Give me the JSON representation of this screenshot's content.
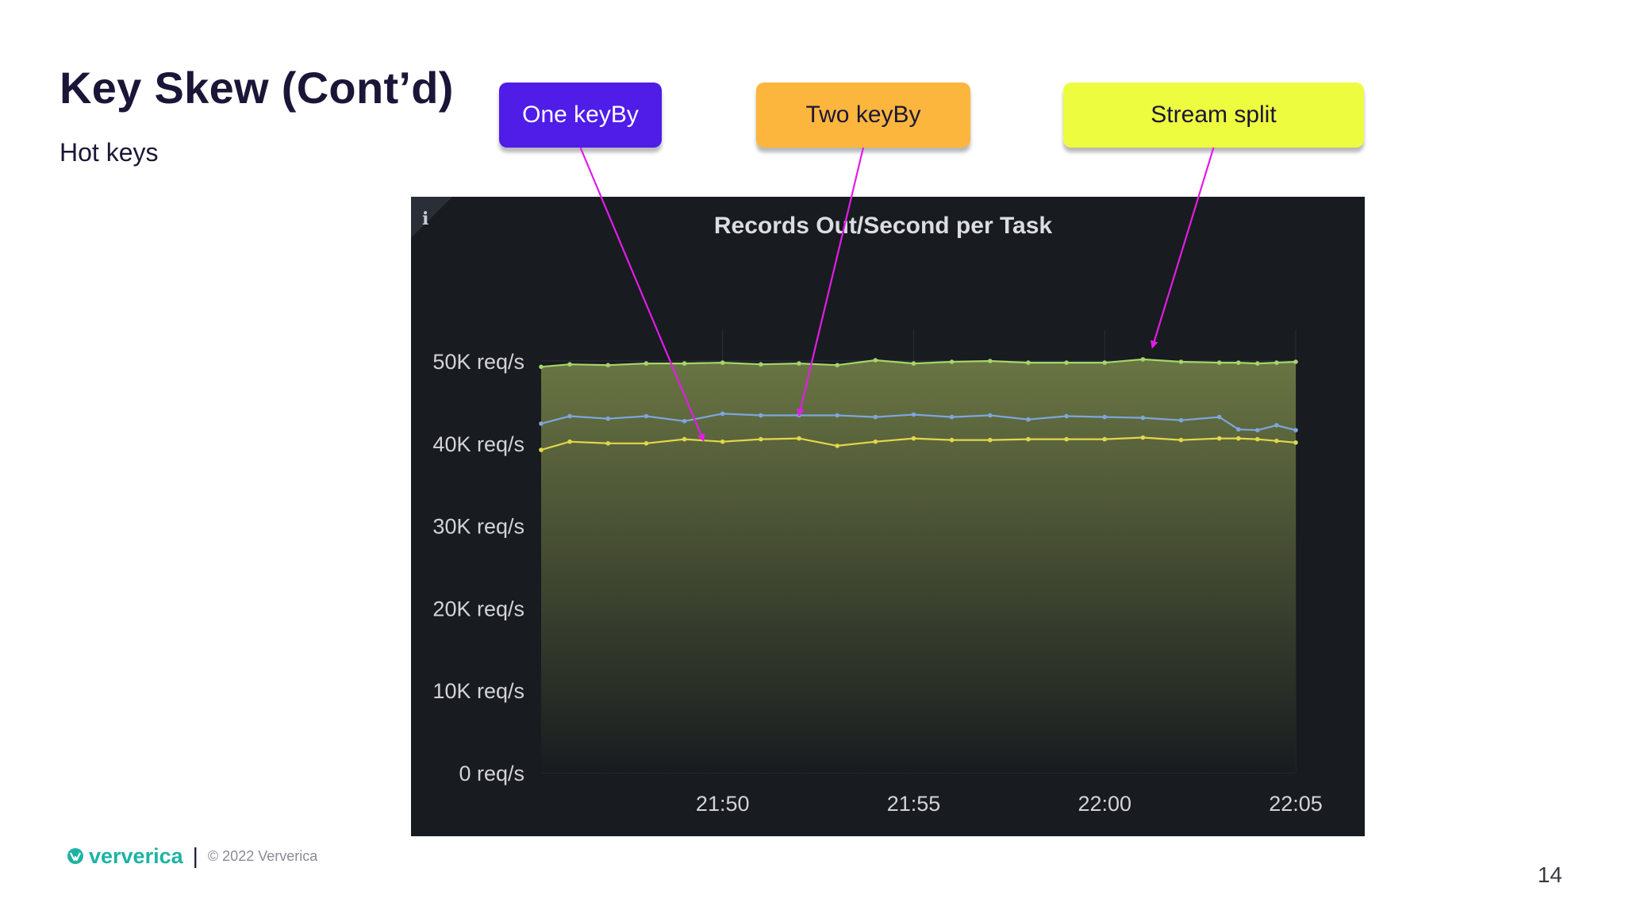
{
  "slide": {
    "title": "Key Skew (Cont’d)",
    "subtitle": "Hot keys",
    "page_number": "14"
  },
  "callouts": [
    {
      "label": "One keyBy",
      "bg": "#4f1ce8",
      "fg": "#ffffff",
      "target_series": "One keyBy"
    },
    {
      "label": "Two  keyBy",
      "bg": "#fdb63d",
      "fg": "#1b1638",
      "target_series": "Two keyBy"
    },
    {
      "label": "Stream split",
      "bg": "#eefc3f",
      "fg": "#1b1638",
      "target_series": "Stream split"
    }
  ],
  "footer": {
    "brand": "ververica",
    "copyright": "© 2022 Ververica",
    "brand_color": "#1db3a4",
    "logo_icon": "ververica-logo-icon"
  },
  "colors": {
    "arrow": "#e21ce6",
    "panel_bg": "#181b1f",
    "text_dark": "#1b1638"
  },
  "chart_data": {
    "type": "area",
    "title": "Records Out/Second per Task",
    "info_icon": "info-icon",
    "x_ticks": [
      "21:50",
      "21:55",
      "22:00",
      "22:05"
    ],
    "y_ticks": [
      "0 req/s",
      "10K req/s",
      "20K req/s",
      "30K req/s",
      "40K req/s",
      "50K req/s"
    ],
    "ylim": [
      0,
      50000
    ],
    "xlim": [
      "21:45:15",
      "22:05:00"
    ],
    "x": [
      "21:45:15",
      "21:46:00",
      "21:47:00",
      "21:48:00",
      "21:49:00",
      "21:50:00",
      "21:51:00",
      "21:52:00",
      "21:53:00",
      "21:54:00",
      "21:55:00",
      "21:56:00",
      "21:57:00",
      "21:58:00",
      "21:59:00",
      "22:00:00",
      "22:01:00",
      "22:02:00",
      "22:03:00",
      "22:03:30",
      "22:04:00",
      "22:04:30",
      "22:05:00"
    ],
    "series": [
      {
        "name": "Stream split",
        "color": "#a6d56a",
        "values": [
          49300,
          49600,
          49500,
          49700,
          49700,
          49800,
          49600,
          49700,
          49500,
          50100,
          49700,
          49900,
          50000,
          49800,
          49800,
          49800,
          50200,
          49900,
          49800,
          49800,
          49700,
          49800,
          49900
        ]
      },
      {
        "name": "Two keyBy",
        "color": "#7ea6dc",
        "values": [
          42400,
          43300,
          43000,
          43300,
          42700,
          43600,
          43400,
          43400,
          43400,
          43200,
          43500,
          43200,
          43400,
          42900,
          43300,
          43200,
          43100,
          42800,
          43200,
          41700,
          41600,
          42200,
          41600
        ]
      },
      {
        "name": "One keyBy",
        "color": "#e3d64b",
        "values": [
          39200,
          40200,
          40000,
          40000,
          40500,
          40200,
          40500,
          40600,
          39700,
          40200,
          40600,
          40400,
          40400,
          40500,
          40500,
          40500,
          40700,
          40400,
          40600,
          40600,
          40500,
          40300,
          40100
        ]
      }
    ],
    "grid": true,
    "legend": "none"
  }
}
